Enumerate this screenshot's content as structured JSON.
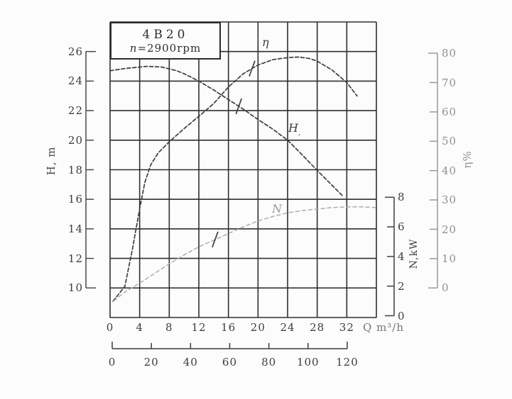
{
  "figure": {
    "model": "4B20",
    "speed_var": "n",
    "speed_rest": "=2900rpm"
  },
  "chart_data": {
    "type": "line",
    "title": "4B20 pump performance curves at n=2900rpm",
    "x_axis": {
      "unit_label": "Q m³/h",
      "ticks": [
        0,
        4,
        8,
        12,
        16,
        20,
        24,
        28,
        32
      ],
      "range": [
        0,
        36
      ],
      "grid": true
    },
    "x2_axis": {
      "ticks": [
        0,
        20,
        40,
        60,
        80,
        100,
        120
      ],
      "range": [
        0,
        120
      ]
    },
    "y_head": {
      "title": "H, m",
      "ticks": [
        26,
        24,
        22,
        20,
        18,
        16,
        14,
        12,
        10
      ],
      "range": [
        8,
        28
      ]
    },
    "y_eff": {
      "title": "η%",
      "ticks": [
        80,
        70,
        60,
        50,
        40,
        30,
        20,
        10,
        0
      ],
      "range": [
        0,
        80
      ]
    },
    "y_power": {
      "title": "N,kW",
      "ticks": [
        8,
        6,
        4,
        2,
        0
      ],
      "range": [
        0,
        8
      ]
    },
    "series": [
      {
        "id": "head",
        "label": "H",
        "label_sub": ",",
        "axis": "y_head",
        "color": "#3e3e3e",
        "points": [
          [
            0,
            24.7
          ],
          [
            2,
            24.85
          ],
          [
            4,
            24.95
          ],
          [
            5,
            25.0
          ],
          [
            7,
            24.95
          ],
          [
            9,
            24.7
          ],
          [
            10,
            24.5
          ],
          [
            12,
            24.0
          ],
          [
            14,
            23.4
          ],
          [
            16,
            22.75
          ],
          [
            18,
            22.1
          ],
          [
            20,
            21.4
          ],
          [
            22,
            20.75
          ],
          [
            24,
            20.0
          ],
          [
            26,
            19.0
          ],
          [
            28,
            17.95
          ],
          [
            30,
            16.95
          ],
          [
            31.5,
            16.2
          ]
        ]
      },
      {
        "id": "eff",
        "label": "η",
        "axis": "y_eff",
        "color": "#3e3e3e",
        "points": [
          [
            0.4,
            -4.5
          ],
          [
            2,
            0.5
          ],
          [
            3,
            13
          ],
          [
            4,
            27
          ],
          [
            4.7,
            36
          ],
          [
            5.5,
            42
          ],
          [
            6.5,
            46
          ],
          [
            8,
            49.8
          ],
          [
            10,
            54.3
          ],
          [
            12,
            58.5
          ],
          [
            14,
            62.8
          ],
          [
            16,
            68.5
          ],
          [
            18,
            73
          ],
          [
            20,
            76
          ],
          [
            22,
            77.8
          ],
          [
            24,
            78.5
          ],
          [
            25.5,
            78.7
          ],
          [
            27,
            78.2
          ],
          [
            28,
            77.3
          ],
          [
            30,
            74.3
          ],
          [
            32,
            70
          ],
          [
            33.4,
            65.4
          ]
        ]
      },
      {
        "id": "power",
        "label": "N",
        "axis": "y_power",
        "color": "#adadad",
        "points": [
          [
            0.5,
            1.0
          ],
          [
            2,
            1.6
          ],
          [
            4,
            2.2
          ],
          [
            6,
            2.85
          ],
          [
            8,
            3.5
          ],
          [
            10,
            4.1
          ],
          [
            12,
            4.65
          ],
          [
            14,
            5.1
          ],
          [
            16,
            5.55
          ],
          [
            18,
            6.0
          ],
          [
            20,
            6.4
          ],
          [
            22,
            6.7
          ],
          [
            24,
            6.95
          ],
          [
            26,
            7.1
          ],
          [
            28,
            7.2
          ],
          [
            30,
            7.3
          ],
          [
            32,
            7.35
          ],
          [
            34,
            7.35
          ],
          [
            36,
            7.3
          ]
        ]
      }
    ],
    "duty_marks": [
      {
        "series": "eff",
        "q": 19.2
      },
      {
        "series": "head",
        "q": 17.4
      },
      {
        "series": "power",
        "q": 14.2
      }
    ]
  }
}
